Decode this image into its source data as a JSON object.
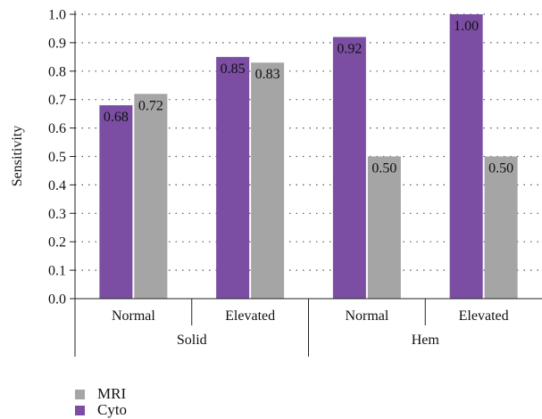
{
  "chart_data": {
    "type": "bar",
    "title": "",
    "xlabel": "",
    "ylabel": "Sensitivity",
    "ylim": [
      0,
      1.0
    ],
    "yticks": [
      "0.0",
      "0.1",
      "0.2",
      "0.3",
      "0.4",
      "0.5",
      "0.6",
      "0.7",
      "0.8",
      "0.9",
      "1.0"
    ],
    "grid": "horizontal dotted",
    "legend_placement": "bottom-left",
    "groups": [
      {
        "label": "Solid",
        "categories": [
          "Normal",
          "Elevated"
        ]
      },
      {
        "label": "Hem",
        "categories": [
          "Normal",
          "Elevated"
        ]
      }
    ],
    "categories": [
      "Normal",
      "Elevated",
      "Normal",
      "Elevated"
    ],
    "series": [
      {
        "name": "Cyto",
        "color": "#7b4ea3",
        "values": [
          0.68,
          0.85,
          0.92,
          1.0
        ],
        "labels": [
          "0.68",
          "0.85",
          "0.92",
          "1.00"
        ]
      },
      {
        "name": "MRI",
        "color": "#a5a5a5",
        "values": [
          0.72,
          0.83,
          0.5,
          0.5
        ],
        "labels": [
          "0.72",
          "0.83",
          "0.50",
          "0.50"
        ]
      }
    ]
  }
}
